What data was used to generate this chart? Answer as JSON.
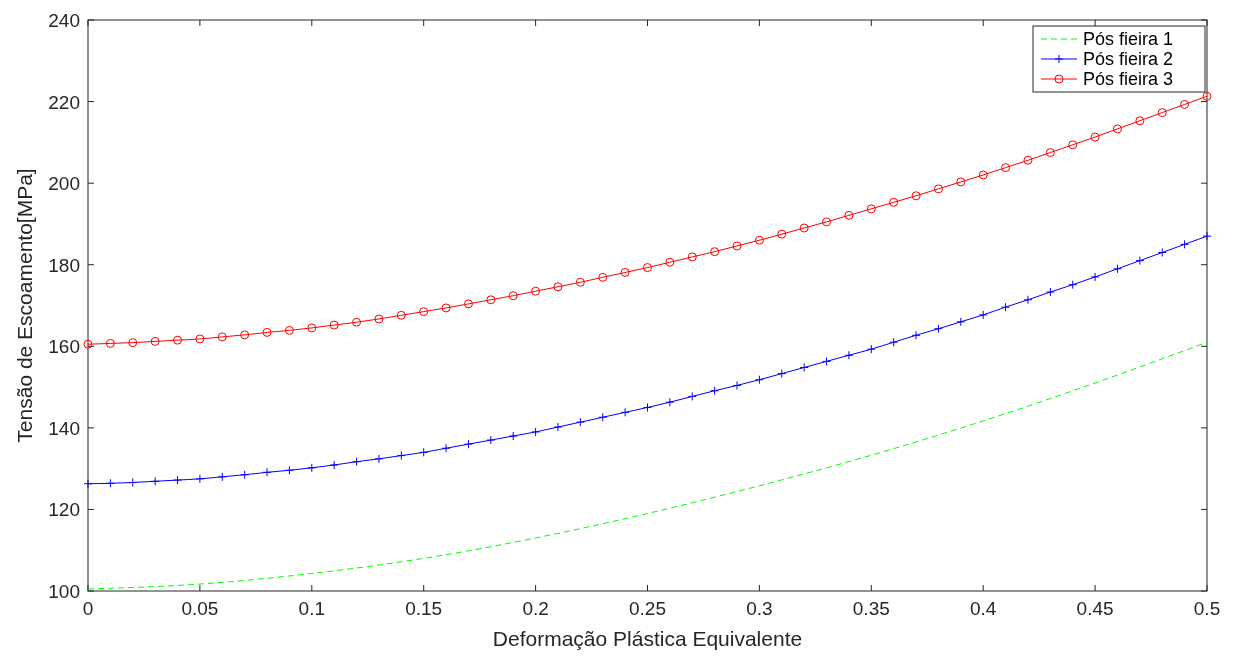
{
  "chart_data": {
    "type": "line",
    "xlabel": "Deformação Plástica Equivalente",
    "ylabel": "Tensão de Escoamento[MPa]",
    "xlim": [
      0,
      0.5
    ],
    "xticks": [
      0,
      0.05,
      0.1,
      0.15,
      0.2,
      0.25,
      0.3,
      0.35,
      0.4,
      0.45,
      0.5
    ],
    "ylim": [
      100,
      240
    ],
    "yticks": [
      100,
      120,
      140,
      160,
      180,
      200,
      220,
      240
    ],
    "grid": false,
    "legend": "top right",
    "series": [
      {
        "name": "Pós fieira 1",
        "color": "#00ff00",
        "line_style": "dashed",
        "marker": "none",
        "x": [
          0,
          0.05,
          0.1,
          0.15,
          0.2,
          0.25,
          0.3,
          0.35,
          0.4,
          0.45,
          0.5
        ],
        "values": [
          100.5,
          101.7,
          104.3,
          108,
          113,
          119,
          125.8,
          133.3,
          141.7,
          151,
          161
        ]
      },
      {
        "name": "Pós fieira 2",
        "color": "#0000ff",
        "line_style": "solid",
        "marker": "cross",
        "values": [
          126.3,
          126.4,
          126.6,
          126.9,
          127.2,
          127.5,
          128.0,
          128.5,
          129.1,
          129.6,
          130.2,
          130.9,
          131.7,
          132.4,
          133.2,
          134.0,
          135.0,
          136.0,
          137.0,
          138.0,
          139.0,
          140.2,
          141.4,
          142.6,
          143.8,
          145.0,
          146.3,
          147.7,
          149.1,
          150.4,
          151.8,
          153.3,
          154.8,
          156.3,
          157.8,
          159.3,
          161.0,
          162.7,
          164.3,
          166.0,
          167.7,
          169.6,
          171.4,
          173.3,
          175.1,
          177.0,
          179.0,
          181.0,
          183.0,
          185.0,
          187.0
        ]
      },
      {
        "name": "Pós fieira 3",
        "color": "#ff0000",
        "line_style": "solid",
        "marker": "circle",
        "values": [
          160.5,
          160.7,
          160.9,
          161.2,
          161.5,
          161.8,
          162.3,
          162.8,
          163.4,
          163.9,
          164.5,
          165.2,
          165.9,
          166.7,
          167.6,
          168.5,
          169.4,
          170.4,
          171.4,
          172.4,
          173.5,
          174.6,
          175.7,
          176.9,
          178.1,
          179.3,
          180.6,
          181.9,
          183.2,
          184.6,
          186.0,
          187.5,
          189.0,
          190.5,
          192.1,
          193.7,
          195.3,
          196.9,
          198.6,
          200.3,
          202.0,
          203.8,
          205.6,
          207.5,
          209.4,
          211.3,
          213.3,
          215.3,
          217.3,
          219.3,
          221.3
        ]
      }
    ],
    "x": [
      0,
      0.01,
      0.02,
      0.03,
      0.04,
      0.05,
      0.06,
      0.07,
      0.08,
      0.09,
      0.1,
      0.11,
      0.12,
      0.13,
      0.14,
      0.15,
      0.16,
      0.17,
      0.18,
      0.19,
      0.2,
      0.21,
      0.22,
      0.23,
      0.24,
      0.25,
      0.26,
      0.27,
      0.28,
      0.29,
      0.3,
      0.31,
      0.32,
      0.33,
      0.34,
      0.35,
      0.36,
      0.37,
      0.38,
      0.39,
      0.4,
      0.41,
      0.42,
      0.43,
      0.44,
      0.45,
      0.46,
      0.47,
      0.48,
      0.49,
      0.5
    ]
  }
}
